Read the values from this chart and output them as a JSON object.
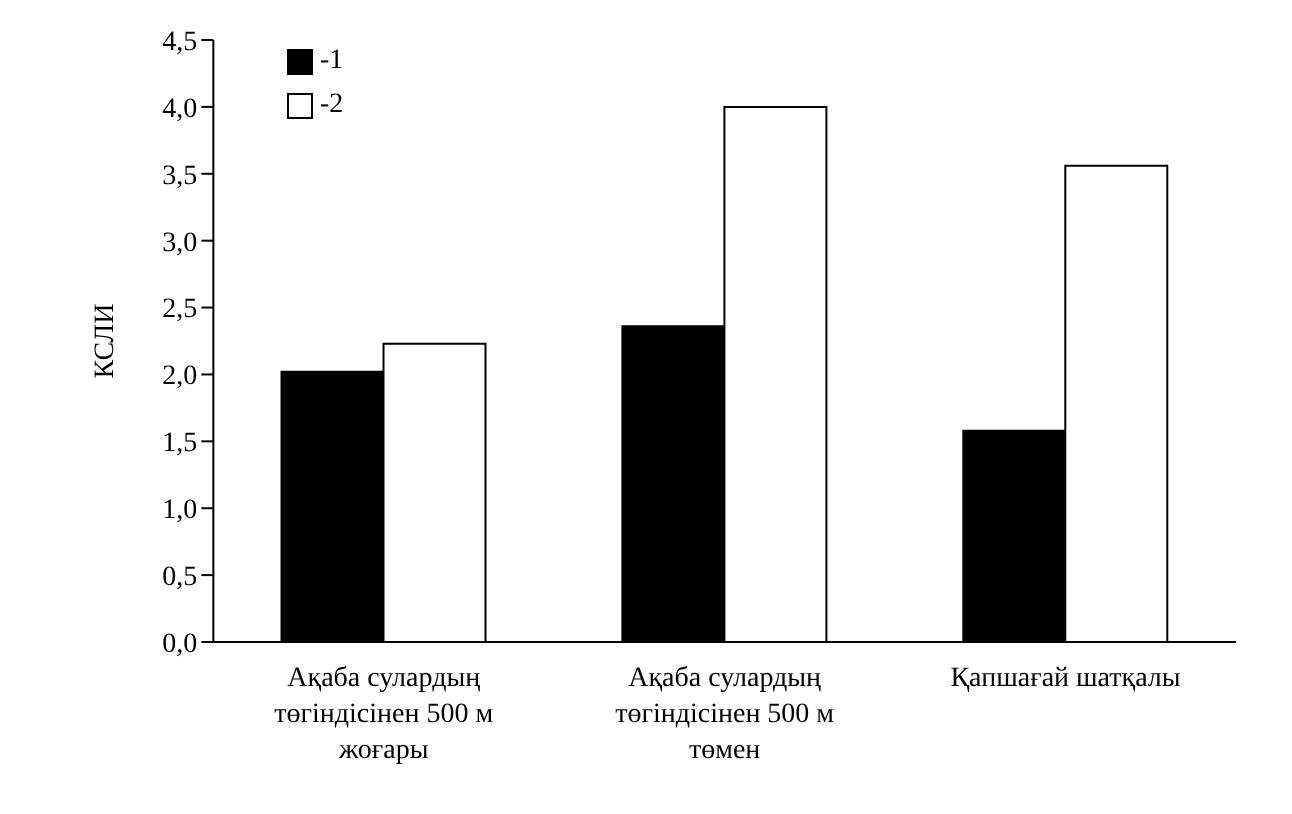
{
  "chart_data": {
    "type": "bar",
    "ylabel": "КСЛИ",
    "categories": [
      "Ақаба сулардың төгіндісінен 500 м жоғары",
      "Ақаба сулардың төгіндісінен 500 м төмен",
      "Қапшағай шатқалы"
    ],
    "series": [
      {
        "name": "-1",
        "color": "#000000",
        "values": [
          2.02,
          2.36,
          1.58
        ]
      },
      {
        "name": "-2",
        "color": "#ffffff",
        "values": [
          2.23,
          4.0,
          3.56
        ]
      }
    ],
    "ylim": [
      0,
      4.5
    ],
    "yticks": [
      {
        "value": 0,
        "label": "0,0"
      },
      {
        "value": 0.5,
        "label": "0,5"
      },
      {
        "value": 1,
        "label": "1,0"
      },
      {
        "value": 1.5,
        "label": "1,5"
      },
      {
        "value": 2,
        "label": "2,0"
      },
      {
        "value": 2.5,
        "label": "2,5"
      },
      {
        "value": 3,
        "label": "3,0"
      },
      {
        "value": 3.5,
        "label": "3,5"
      },
      {
        "value": 4,
        "label": "4,0"
      },
      {
        "value": 4.5,
        "label": "4,5"
      }
    ],
    "grid": false,
    "legend": "top left"
  }
}
